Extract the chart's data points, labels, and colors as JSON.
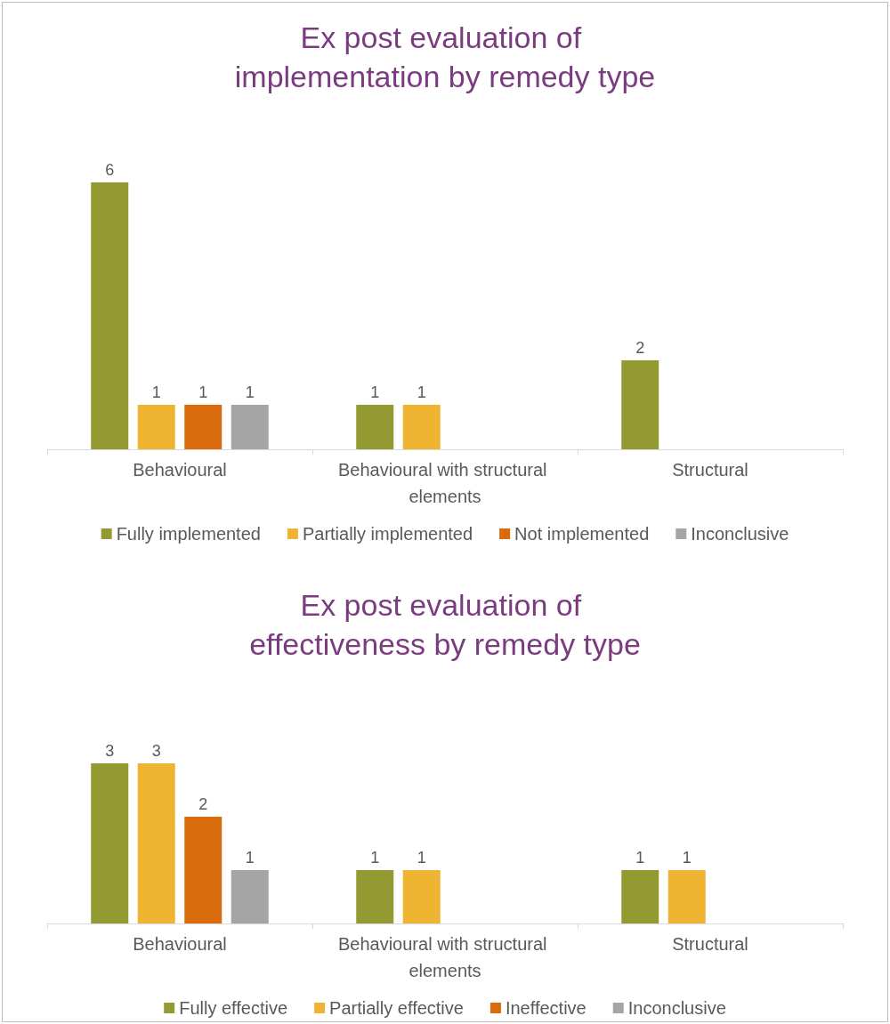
{
  "chart_data": [
    {
      "type": "bar",
      "title": "Ex post evaluation of implementation by remedy type",
      "categories": [
        "Behavioural",
        "Behavioural with structural elements",
        "Structural"
      ],
      "series": [
        {
          "name": "Fully implemented",
          "color": "#939a32",
          "values": [
            6,
            1,
            2
          ],
          "value_labels": [
            "6",
            "1",
            "2"
          ]
        },
        {
          "name": "Partially implemented",
          "color": "#f0b433",
          "values": [
            1,
            1,
            null
          ],
          "value_labels": [
            "1",
            "1",
            null
          ]
        },
        {
          "name": "Not implemented",
          "color": "#d86c0c",
          "values": [
            1,
            null,
            null
          ],
          "value_labels": [
            "1",
            null,
            null
          ]
        },
        {
          "name": "Inconclusive",
          "color": "#a5a5a5",
          "values": [
            1,
            null,
            null
          ],
          "value_labels": [
            "1",
            null,
            null
          ]
        }
      ],
      "legend": "bottom"
    },
    {
      "type": "bar",
      "title": "Ex post evaluation of effectiveness by remedy type",
      "categories": [
        "Behavioural",
        "Behavioural with structural elements",
        "Structural"
      ],
      "series": [
        {
          "name": "Fully effective",
          "color": "#939a32",
          "values": [
            3,
            1,
            1
          ],
          "value_labels": [
            "3",
            "1",
            "1"
          ]
        },
        {
          "name": "Partially effective",
          "color": "#f0b433",
          "values": [
            3,
            1,
            1
          ],
          "value_labels": [
            "3",
            "1",
            "1"
          ]
        },
        {
          "name": "Ineffective",
          "color": "#d86c0c",
          "values": [
            2,
            null,
            null
          ],
          "value_labels": [
            "2",
            null,
            null
          ]
        },
        {
          "name": "Inconclusive",
          "color": "#a5a5a5",
          "values": [
            1,
            null,
            null
          ],
          "value_labels": [
            "1",
            null,
            null
          ]
        }
      ],
      "legend": "bottom"
    }
  ]
}
